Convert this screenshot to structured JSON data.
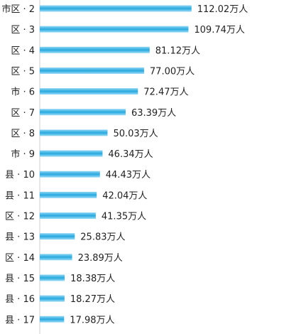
{
  "chart_data": {
    "type": "bar",
    "orientation": "horizontal",
    "unit": "万人",
    "categories": [
      "市区・2",
      "区・3",
      "区・4",
      "区・5",
      "市・6",
      "区・7",
      "区・8",
      "市・9",
      "县・10",
      "县・11",
      "区・12",
      "县・13",
      "区・14",
      "县・15",
      "县・16",
      "县・17"
    ],
    "category_labels": [
      "市区 · 2",
      "区 · 3",
      "区 · 4",
      "区 · 5",
      "市 · 6",
      "区 · 7",
      "区 · 8",
      "市 · 9",
      "县 · 10",
      "县 · 11",
      "区 · 12",
      "县 · 13",
      "区 · 14",
      "县 · 15",
      "县 · 16",
      "县 · 17"
    ],
    "values": [
      112.02,
      109.74,
      81.12,
      77.0,
      72.47,
      63.39,
      50.03,
      46.34,
      44.43,
      42.04,
      41.35,
      25.83,
      23.89,
      18.38,
      18.27,
      17.98
    ],
    "value_labels": [
      "112.02万人",
      "109.74万人",
      "81.12万人",
      "77.00万人",
      "72.47万人",
      "63.39万人",
      "50.03万人",
      "46.34万人",
      "44.43万人",
      "42.04万人",
      "41.35万人",
      "25.83万人",
      "23.89万人",
      "18.38万人",
      "18.27万人",
      "17.98万人"
    ],
    "bar_color": "#28a9df",
    "grid": false,
    "legend": "none"
  }
}
